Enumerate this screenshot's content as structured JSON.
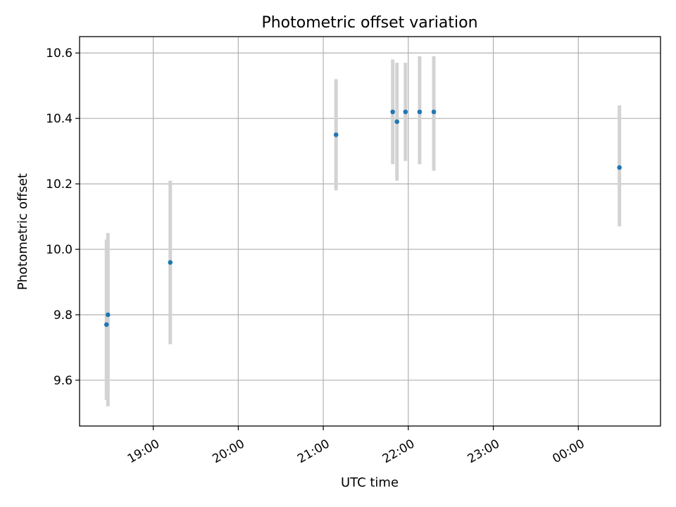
{
  "chart_data": {
    "type": "scatter",
    "title": "Photometric offset variation",
    "xlabel": "UTC time",
    "ylabel": "Photometric offset",
    "x_ticks": [
      "19:00",
      "20:00",
      "21:00",
      "22:00",
      "23:00",
      "00:00"
    ],
    "y_ticks": [
      "9.6",
      "9.8",
      "10.0",
      "10.2",
      "10.4",
      "10.6"
    ],
    "xlim": [
      "18:08",
      "00:58"
    ],
    "ylim": [
      9.46,
      10.65
    ],
    "grid": true,
    "colors": {
      "marker": "#1f77b4",
      "errorbar": "#d3d3d3",
      "grid": "#b0b0b0"
    },
    "points": [
      {
        "time": "18:27",
        "y": 9.77,
        "err_low": 9.54,
        "err_high": 10.03
      },
      {
        "time": "18:28",
        "y": 9.8,
        "err_low": 9.52,
        "err_high": 10.05
      },
      {
        "time": "19:12",
        "y": 9.96,
        "err_low": 9.71,
        "err_high": 10.21
      },
      {
        "time": "21:09",
        "y": 10.35,
        "err_low": 10.18,
        "err_high": 10.52
      },
      {
        "time": "21:49",
        "y": 10.42,
        "err_low": 10.26,
        "err_high": 10.58
      },
      {
        "time": "21:52",
        "y": 10.39,
        "err_low": 10.21,
        "err_high": 10.57
      },
      {
        "time": "21:58",
        "y": 10.42,
        "err_low": 10.27,
        "err_high": 10.57
      },
      {
        "time": "22:08",
        "y": 10.42,
        "err_low": 10.26,
        "err_high": 10.59
      },
      {
        "time": "22:18",
        "y": 10.42,
        "err_low": 10.24,
        "err_high": 10.59
      },
      {
        "time": "00:29",
        "y": 10.25,
        "err_low": 10.07,
        "err_high": 10.44
      }
    ]
  }
}
